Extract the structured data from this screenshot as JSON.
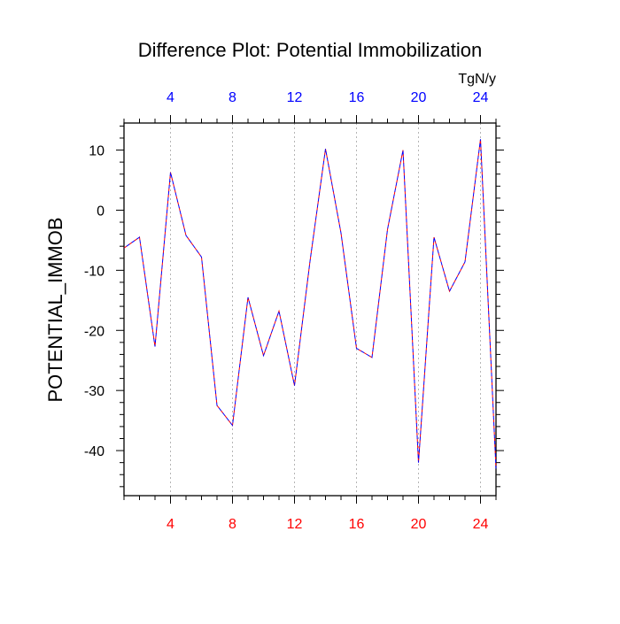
{
  "chart_data": {
    "type": "line",
    "title": "Difference Plot: Potential Immobilization",
    "ylabel": "POTENTIAL_IMMOB",
    "units": "TgN/y",
    "xlim": [
      1,
      25
    ],
    "ylim": [
      -47.5,
      14.5
    ],
    "x_ticks": [
      4,
      8,
      12,
      16,
      20,
      24
    ],
    "y_ticks": [
      10,
      0,
      -10,
      -20,
      -30,
      -40
    ],
    "grid_x": true,
    "x_tick_color_bottom": "#ff0000",
    "x_tick_color_top": "#0000ff",
    "series": [
      {
        "line_colors": [
          "#ff0000",
          "#0000ff"
        ],
        "line_style": "dashed",
        "x": [
          1,
          2,
          3,
          4,
          5,
          6,
          7,
          8,
          9,
          10,
          11,
          12,
          13,
          14,
          15,
          16,
          17,
          18,
          19,
          20,
          21,
          22,
          23,
          24,
          25
        ],
        "y": [
          -6.3,
          -4.5,
          -22.7,
          6.3,
          -4.2,
          -7.8,
          -32.5,
          -35.8,
          -14.5,
          -24.2,
          -16.8,
          -29.2,
          -8.5,
          10.2,
          -3.8,
          -23.0,
          -24.5,
          -3.2,
          10.0,
          -42.0,
          -4.5,
          -13.5,
          -8.6,
          11.8,
          -43.0
        ]
      }
    ]
  }
}
